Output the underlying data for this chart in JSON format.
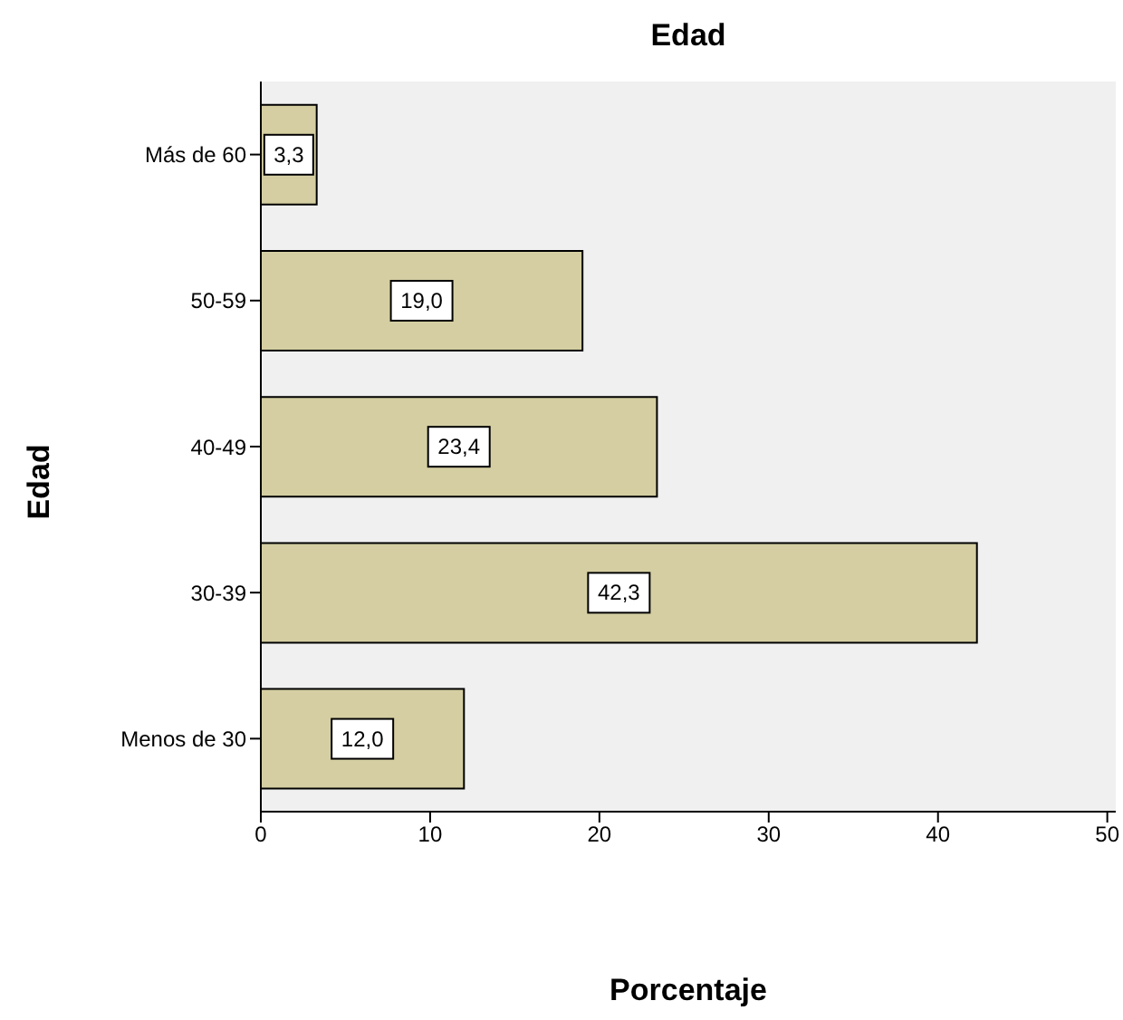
{
  "chart_data": {
    "type": "bar",
    "orientation": "horizontal",
    "title": "Edad",
    "xlabel": "Porcentaje",
    "ylabel": "Edad",
    "categories": [
      "Más de 60",
      "50-59",
      "40-49",
      "30-39",
      "Menos de 30"
    ],
    "values": [
      3.3,
      19.0,
      23.4,
      42.3,
      12.0
    ],
    "value_labels": [
      "3,3",
      "19,0",
      "23,4",
      "42,3",
      "12,0"
    ],
    "color": "#d4cea2",
    "xlim": [
      0,
      50.5
    ],
    "xticks": [
      0,
      10,
      20,
      30,
      40,
      50
    ],
    "grid": false
  }
}
